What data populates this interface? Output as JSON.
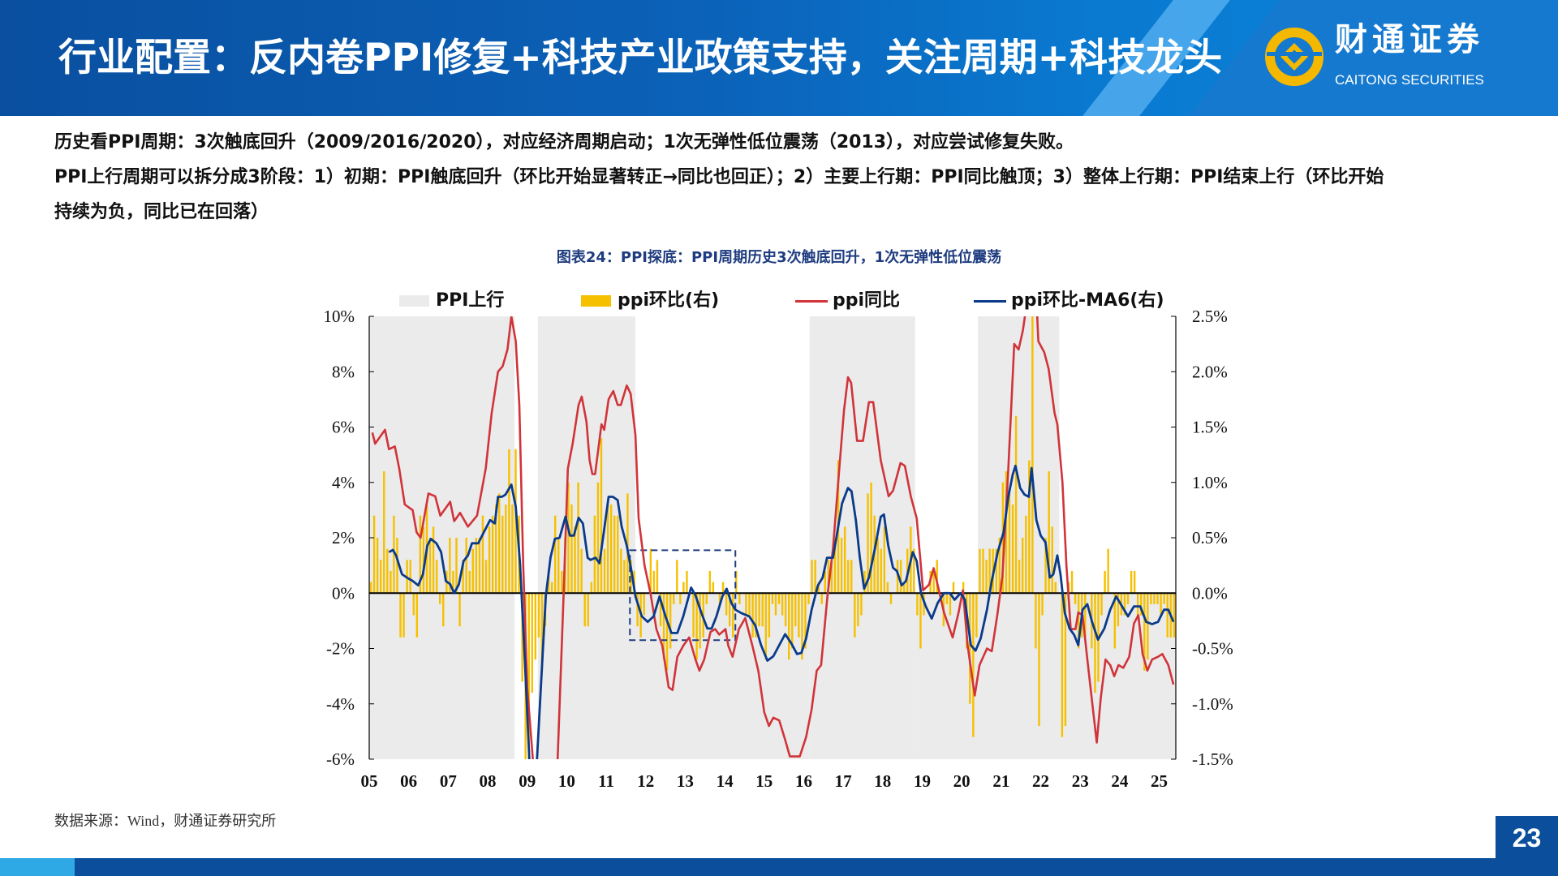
{
  "header": {
    "title": "行业配置：反内卷PPI修复+科技产业政策支持，关注周期+科技龙头",
    "logo_cn": "财通证券",
    "logo_en": "CAITONG SECURITIES"
  },
  "body": {
    "line1": "历史看PPI周期：3次触底回升（2009/2016/2020），对应经济周期启动；1次无弹性低位震荡（2013），对应尝试修复失败。",
    "line2a": "PPI上行周期可以拆分成3阶段：1）初期：PPI触底回升（环比开始显著转正→同比也回正）；2）主要上行期：PPI同比触顶；3）整体上行期：PPI结束上行（环比开始",
    "line2b": "持续为负，同比已在回落）"
  },
  "footer": {
    "source": "数据来源：Wind，财通证券研究所",
    "page_number": "23"
  },
  "colors": {
    "header_blue": "#0b62b8",
    "shade": "#ebebeb",
    "mom_bar": "#f5c000",
    "yoy_line": "#d0343a",
    "ma6_line": "#0a3a8a",
    "logo_gold": "#f5b800"
  },
  "chart_data": {
    "type": "combo",
    "title": "图表24：PPI探底：PPI周期历史3次触底回升，1次无弹性低位震荡",
    "legend": [
      "PPI上行",
      "ppi环比(右)",
      "ppi同比",
      "ppi环比-MA6(右)"
    ],
    "legend_placement": "top",
    "x_ticks": [
      "05",
      "06",
      "07",
      "08",
      "09",
      "10",
      "11",
      "12",
      "13",
      "14",
      "15",
      "16",
      "17",
      "18",
      "19",
      "20",
      "21",
      "22",
      "23",
      "24",
      "25"
    ],
    "x_range_year": [
      2005.0,
      2025.42
    ],
    "y_left": {
      "ticks": [
        "10%",
        "8%",
        "6%",
        "4%",
        "2%",
        "0%",
        "-2%",
        "-4%",
        "-6%"
      ],
      "range": [
        -6,
        10
      ]
    },
    "y_right": {
      "ticks": [
        "2.5%",
        "2.0%",
        "1.5%",
        "1.0%",
        "0.5%",
        "0.0%",
        "-0.5%",
        "-1.0%",
        "-1.5%"
      ],
      "range": [
        -1.5,
        2.5
      ]
    },
    "grid": false,
    "ppi_up_full_periods": [
      [
        2005.0,
        2008.68
      ],
      [
        2009.27,
        2011.74
      ],
      [
        2016.15,
        2018.82
      ],
      [
        2020.41,
        2022.47
      ]
    ],
    "ppi_down_shaded_periods": [
      [
        2011.74,
        2016.15
      ],
      [
        2018.82,
        2020.41
      ],
      [
        2022.47,
        2025.42
      ]
    ],
    "highlight_box": {
      "x": [
        2011.6,
        2014.27
      ],
      "y_left": [
        -1.7,
        1.55
      ]
    },
    "mom_start": "2005-01",
    "mom_right_axis": [
      0.1,
      0.7,
      0.5,
      0.3,
      1.1,
      0.4,
      0.2,
      0.7,
      0.5,
      -0.4,
      -0.4,
      0.3,
      0.3,
      -0.2,
      -0.4,
      0.7,
      0.6,
      0.8,
      0.5,
      0.6,
      0.3,
      -0.1,
      -0.3,
      0.2,
      0.5,
      0.2,
      0.5,
      -0.3,
      0.3,
      0.5,
      0.2,
      0.4,
      0.5,
      0.5,
      0.7,
      0.3,
      0.6,
      0.7,
      0.8,
      0.9,
      0.7,
      0.8,
      1.3,
      0.8,
      1.3,
      0.7,
      -0.8,
      -1.8,
      -1.9,
      -0.9,
      -0.6,
      -0.4,
      -0.7,
      -0.3,
      0.2,
      0.1,
      0.7,
      0.5,
      0.2,
      0.5,
      1.0,
      0.8,
      0.6,
      1.0,
      0.4,
      -0.3,
      -0.3,
      0.1,
      0.7,
      1.0,
      1.4,
      0.4,
      0.8,
      0.8,
      0.7,
      0.7,
      0.4,
      0.3,
      0.9,
      0.3,
      0.2,
      -0.3,
      -0.4,
      -0.2,
      0.0,
      0.4,
      0.2,
      0.3,
      -0.3,
      -0.6,
      -0.7,
      -0.5,
      -0.1,
      0.3,
      -0.1,
      0.1,
      0.2,
      0.0,
      -0.4,
      -0.6,
      -0.5,
      -0.4,
      -0.1,
      0.2,
      0.1,
      0.0,
      -0.1,
      0.1,
      -0.2,
      -0.3,
      -0.4,
      0.2,
      -0.1,
      0.0,
      -0.2,
      -0.2,
      -0.4,
      -0.4,
      -0.3,
      -0.3,
      -0.6,
      -0.4,
      -0.1,
      -0.2,
      -0.1,
      -0.2,
      -0.3,
      -0.6,
      -0.5,
      -0.3,
      -0.4,
      -0.6,
      -0.5,
      -0.1,
      0.3,
      0.3,
      0.1,
      -0.1,
      0.2,
      0.3,
      0.3,
      0.5,
      1.2,
      0.5,
      0.6,
      0.3,
      0.3,
      -0.4,
      -0.3,
      -0.2,
      0.2,
      0.9,
      1.0,
      0.7,
      0.5,
      0.4,
      0.6,
      0.1,
      -0.1,
      0.0,
      0.3,
      0.3,
      0.1,
      0.4,
      0.6,
      0.4,
      -0.2,
      -0.5,
      -0.2,
      0.0,
      0.2,
      0.2,
      0.3,
      0.0,
      -0.3,
      -0.1,
      -0.2,
      0.1,
      0.0,
      0.0,
      0.1,
      -0.5,
      -1.0,
      -1.3,
      -0.4,
      0.4,
      0.4,
      0.3,
      0.4,
      0.4,
      0.4,
      0.5,
      1.0,
      1.1,
      0.9,
      0.8,
      1.6,
      0.3,
      0.5,
      0.7,
      1.2,
      2.5,
      -0.5,
      -1.2,
      -0.2,
      0.5,
      1.1,
      0.6,
      0.1,
      0.0,
      -1.3,
      -1.2,
      0.1,
      0.2,
      -0.1,
      -0.5,
      -0.4,
      -0.4,
      0.0,
      -0.5,
      -0.9,
      -0.8,
      -0.2,
      0.2,
      0.4,
      0.0,
      -0.5,
      -0.3,
      -0.2,
      -0.2,
      -0.1,
      0.2,
      0.2,
      -0.2,
      -0.2,
      -0.7,
      -0.6,
      -0.1,
      -0.1,
      -0.1,
      -0.2,
      -0.1,
      -0.4,
      -0.4,
      -0.4
    ],
    "yoy_left_axis": [
      [
        2005.08,
        5.8
      ],
      [
        2005.15,
        5.4
      ],
      [
        2005.4,
        5.9
      ],
      [
        2005.5,
        5.2
      ],
      [
        2005.65,
        5.3
      ],
      [
        2005.76,
        4.5
      ],
      [
        2005.9,
        3.2
      ],
      [
        2006.1,
        3.0
      ],
      [
        2006.2,
        2.2
      ],
      [
        2006.3,
        2.0
      ],
      [
        2006.5,
        3.6
      ],
      [
        2006.67,
        3.5
      ],
      [
        2006.8,
        2.8
      ],
      [
        2007.05,
        3.3
      ],
      [
        2007.15,
        2.6
      ],
      [
        2007.3,
        2.9
      ],
      [
        2007.5,
        2.4
      ],
      [
        2007.73,
        2.8
      ],
      [
        2007.95,
        4.5
      ],
      [
        2008.1,
        6.5
      ],
      [
        2008.26,
        8.0
      ],
      [
        2008.38,
        8.2
      ],
      [
        2008.5,
        8.8
      ],
      [
        2008.6,
        10.0
      ],
      [
        2008.71,
        9.1
      ],
      [
        2008.8,
        6.8
      ],
      [
        2008.9,
        1.0
      ],
      [
        2009.0,
        -3.4
      ],
      [
        2009.17,
        -6.5
      ],
      [
        2009.45,
        -7.8
      ],
      [
        2009.77,
        -6.0
      ],
      [
        2009.92,
        -0.1
      ],
      [
        2010.03,
        4.5
      ],
      [
        2010.15,
        5.4
      ],
      [
        2010.3,
        6.8
      ],
      [
        2010.38,
        7.1
      ],
      [
        2010.5,
        6.2
      ],
      [
        2010.58,
        4.8
      ],
      [
        2010.65,
        4.3
      ],
      [
        2010.72,
        4.3
      ],
      [
        2010.88,
        6.1
      ],
      [
        2010.95,
        5.9
      ],
      [
        2011.06,
        7.0
      ],
      [
        2011.18,
        7.3
      ],
      [
        2011.29,
        6.8
      ],
      [
        2011.37,
        6.8
      ],
      [
        2011.52,
        7.5
      ],
      [
        2011.62,
        7.2
      ],
      [
        2011.74,
        5.7
      ],
      [
        2011.82,
        2.7
      ],
      [
        2011.97,
        1.0
      ],
      [
        2012.12,
        0.0
      ],
      [
        2012.27,
        -1.3
      ],
      [
        2012.42,
        -1.9
      ],
      [
        2012.58,
        -3.4
      ],
      [
        2012.68,
        -3.5
      ],
      [
        2012.8,
        -2.3
      ],
      [
        2012.95,
        -1.9
      ],
      [
        2013.1,
        -1.6
      ],
      [
        2013.26,
        -2.4
      ],
      [
        2013.36,
        -2.8
      ],
      [
        2013.48,
        -2.4
      ],
      [
        2013.64,
        -1.4
      ],
      [
        2013.76,
        -1.3
      ],
      [
        2013.86,
        -1.5
      ],
      [
        2014.02,
        -1.3
      ],
      [
        2014.09,
        -1.9
      ],
      [
        2014.2,
        -2.3
      ],
      [
        2014.36,
        -1.3
      ],
      [
        2014.52,
        -0.9
      ],
      [
        2014.7,
        -1.9
      ],
      [
        2014.85,
        -2.8
      ],
      [
        2015.0,
        -4.3
      ],
      [
        2015.12,
        -4.8
      ],
      [
        2015.23,
        -4.5
      ],
      [
        2015.38,
        -4.6
      ],
      [
        2015.53,
        -5.3
      ],
      [
        2015.65,
        -5.9
      ],
      [
        2015.9,
        -5.9
      ],
      [
        2016.06,
        -5.2
      ],
      [
        2016.2,
        -4.2
      ],
      [
        2016.33,
        -2.8
      ],
      [
        2016.44,
        -2.6
      ],
      [
        2016.6,
        -0.1
      ],
      [
        2016.74,
        1.6
      ],
      [
        2016.9,
        4.5
      ],
      [
        2017.02,
        6.6
      ],
      [
        2017.12,
        7.8
      ],
      [
        2017.2,
        7.6
      ],
      [
        2017.35,
        5.5
      ],
      [
        2017.5,
        5.5
      ],
      [
        2017.65,
        6.9
      ],
      [
        2017.76,
        6.9
      ],
      [
        2017.95,
        4.8
      ],
      [
        2018.15,
        3.5
      ],
      [
        2018.26,
        3.7
      ],
      [
        2018.45,
        4.7
      ],
      [
        2018.56,
        4.6
      ],
      [
        2018.71,
        3.5
      ],
      [
        2018.86,
        2.7
      ],
      [
        2019.02,
        0.1
      ],
      [
        2019.17,
        0.3
      ],
      [
        2019.29,
        0.9
      ],
      [
        2019.39,
        0.3
      ],
      [
        2019.55,
        -0.7
      ],
      [
        2019.77,
        -1.6
      ],
      [
        2019.92,
        -0.7
      ],
      [
        2020.03,
        0.1
      ],
      [
        2020.15,
        -1.9
      ],
      [
        2020.33,
        -3.7
      ],
      [
        2020.45,
        -2.6
      ],
      [
        2020.64,
        -2.0
      ],
      [
        2020.76,
        -2.1
      ],
      [
        2020.9,
        -0.8
      ],
      [
        2021.03,
        0.6
      ],
      [
        2021.18,
        4.5
      ],
      [
        2021.33,
        9.0
      ],
      [
        2021.44,
        8.8
      ],
      [
        2021.55,
        9.5
      ],
      [
        2021.67,
        10.7
      ],
      [
        2021.8,
        13.5
      ],
      [
        2021.94,
        9.1
      ],
      [
        2022.09,
        8.7
      ],
      [
        2022.2,
        8.1
      ],
      [
        2022.35,
        6.5
      ],
      [
        2022.42,
        6.1
      ],
      [
        2022.55,
        4.0
      ],
      [
        2022.65,
        1.0
      ],
      [
        2022.76,
        -1.3
      ],
      [
        2022.88,
        -1.3
      ],
      [
        2022.95,
        -0.7
      ],
      [
        2023.06,
        -0.8
      ],
      [
        2023.18,
        -2.4
      ],
      [
        2023.33,
        -4.3
      ],
      [
        2023.42,
        -5.4
      ],
      [
        2023.52,
        -3.8
      ],
      [
        2023.64,
        -2.4
      ],
      [
        2023.76,
        -2.6
      ],
      [
        2023.86,
        -3.0
      ],
      [
        2023.97,
        -2.6
      ],
      [
        2024.09,
        -2.7
      ],
      [
        2024.24,
        -2.3
      ],
      [
        2024.36,
        -1.1
      ],
      [
        2024.47,
        -0.8
      ],
      [
        2024.58,
        -2.2
      ],
      [
        2024.7,
        -2.8
      ],
      [
        2024.82,
        -2.4
      ],
      [
        2024.97,
        -2.3
      ],
      [
        2025.08,
        -2.2
      ],
      [
        2025.23,
        -2.6
      ],
      [
        2025.36,
        -3.3
      ]
    ],
    "ma6_right_axis": [
      [
        2005.5,
        0.37
      ],
      [
        2005.6,
        0.39
      ],
      [
        2005.68,
        0.34
      ],
      [
        2005.83,
        0.17
      ],
      [
        2006.0,
        0.13
      ],
      [
        2006.1,
        0.11
      ],
      [
        2006.24,
        0.07
      ],
      [
        2006.36,
        0.17
      ],
      [
        2006.47,
        0.43
      ],
      [
        2006.56,
        0.49
      ],
      [
        2006.7,
        0.45
      ],
      [
        2006.82,
        0.37
      ],
      [
        2006.94,
        0.11
      ],
      [
        2007.05,
        0.08
      ],
      [
        2007.15,
        0.0
      ],
      [
        2007.27,
        0.08
      ],
      [
        2007.39,
        0.29
      ],
      [
        2007.5,
        0.34
      ],
      [
        2007.6,
        0.45
      ],
      [
        2007.76,
        0.45
      ],
      [
        2007.9,
        0.55
      ],
      [
        2008.06,
        0.66
      ],
      [
        2008.18,
        0.63
      ],
      [
        2008.26,
        0.87
      ],
      [
        2008.36,
        0.87
      ],
      [
        2008.45,
        0.89
      ],
      [
        2008.6,
        0.98
      ],
      [
        2008.71,
        0.78
      ],
      [
        2008.82,
        0.26
      ],
      [
        2008.94,
        -0.61
      ],
      [
        2009.06,
        -1.55
      ],
      [
        2009.15,
        -1.7
      ],
      [
        2009.24,
        -1.55
      ],
      [
        2009.36,
        -0.76
      ],
      [
        2009.47,
        -0.03
      ],
      [
        2009.59,
        0.32
      ],
      [
        2009.7,
        0.49
      ],
      [
        2009.82,
        0.5
      ],
      [
        2009.97,
        0.69
      ],
      [
        2010.08,
        0.52
      ],
      [
        2010.18,
        0.52
      ],
      [
        2010.3,
        0.68
      ],
      [
        2010.41,
        0.63
      ],
      [
        2010.53,
        0.32
      ],
      [
        2010.6,
        0.3
      ],
      [
        2010.73,
        0.32
      ],
      [
        2010.83,
        0.27
      ],
      [
        2010.94,
        0.55
      ],
      [
        2011.06,
        0.87
      ],
      [
        2011.17,
        0.87
      ],
      [
        2011.29,
        0.84
      ],
      [
        2011.39,
        0.6
      ],
      [
        2011.52,
        0.43
      ],
      [
        2011.64,
        0.2
      ],
      [
        2011.74,
        -0.03
      ],
      [
        2011.9,
        -0.21
      ],
      [
        2012.05,
        -0.26
      ],
      [
        2012.2,
        -0.21
      ],
      [
        2012.35,
        -0.03
      ],
      [
        2012.5,
        -0.21
      ],
      [
        2012.65,
        -0.36
      ],
      [
        2012.8,
        -0.36
      ],
      [
        2012.95,
        -0.21
      ],
      [
        2013.15,
        0.05
      ],
      [
        2013.26,
        -0.02
      ],
      [
        2013.41,
        -0.18
      ],
      [
        2013.56,
        -0.32
      ],
      [
        2013.67,
        -0.32
      ],
      [
        2013.79,
        -0.21
      ],
      [
        2013.94,
        -0.03
      ],
      [
        2014.05,
        0.04
      ],
      [
        2014.17,
        -0.09
      ],
      [
        2014.27,
        -0.15
      ],
      [
        2014.42,
        -0.18
      ],
      [
        2014.62,
        -0.21
      ],
      [
        2014.77,
        -0.29
      ],
      [
        2014.92,
        -0.47
      ],
      [
        2015.08,
        -0.61
      ],
      [
        2015.23,
        -0.57
      ],
      [
        2015.38,
        -0.47
      ],
      [
        2015.53,
        -0.37
      ],
      [
        2015.68,
        -0.45
      ],
      [
        2015.83,
        -0.55
      ],
      [
        2015.94,
        -0.54
      ],
      [
        2016.06,
        -0.41
      ],
      [
        2016.2,
        -0.15
      ],
      [
        2016.36,
        0.07
      ],
      [
        2016.48,
        0.14
      ],
      [
        2016.59,
        0.32
      ],
      [
        2016.74,
        0.32
      ],
      [
        2016.85,
        0.55
      ],
      [
        2016.97,
        0.81
      ],
      [
        2017.12,
        0.95
      ],
      [
        2017.21,
        0.92
      ],
      [
        2017.32,
        0.66
      ],
      [
        2017.42,
        0.32
      ],
      [
        2017.53,
        0.04
      ],
      [
        2017.65,
        0.14
      ],
      [
        2017.8,
        0.4
      ],
      [
        2017.95,
        0.69
      ],
      [
        2018.03,
        0.71
      ],
      [
        2018.14,
        0.43
      ],
      [
        2018.26,
        0.23
      ],
      [
        2018.36,
        0.2
      ],
      [
        2018.48,
        0.07
      ],
      [
        2018.59,
        0.11
      ],
      [
        2018.76,
        0.37
      ],
      [
        2018.86,
        0.29
      ],
      [
        2018.97,
        0.0
      ],
      [
        2019.09,
        -0.12
      ],
      [
        2019.24,
        -0.23
      ],
      [
        2019.39,
        -0.09
      ],
      [
        2019.55,
        0.0
      ],
      [
        2019.7,
        0.0
      ],
      [
        2019.82,
        -0.06
      ],
      [
        2019.97,
        0.0
      ],
      [
        2020.08,
        -0.06
      ],
      [
        2020.23,
        -0.47
      ],
      [
        2020.35,
        -0.52
      ],
      [
        2020.48,
        -0.41
      ],
      [
        2020.64,
        -0.15
      ],
      [
        2020.76,
        0.11
      ],
      [
        2020.91,
        0.37
      ],
      [
        2021.06,
        0.55
      ],
      [
        2021.18,
        0.87
      ],
      [
        2021.29,
        1.07
      ],
      [
        2021.36,
        1.15
      ],
      [
        2021.48,
        0.95
      ],
      [
        2021.59,
        0.89
      ],
      [
        2021.7,
        0.87
      ],
      [
        2021.77,
        1.13
      ],
      [
        2021.89,
        0.66
      ],
      [
        2022.0,
        0.52
      ],
      [
        2022.12,
        0.46
      ],
      [
        2022.23,
        0.14
      ],
      [
        2022.32,
        0.17
      ],
      [
        2022.42,
        0.34
      ],
      [
        2022.5,
        0.17
      ],
      [
        2022.61,
        -0.18
      ],
      [
        2022.73,
        -0.32
      ],
      [
        2022.85,
        -0.38
      ],
      [
        2022.95,
        -0.47
      ],
      [
        2023.06,
        -0.15
      ],
      [
        2023.18,
        -0.1
      ],
      [
        2023.3,
        -0.26
      ],
      [
        2023.45,
        -0.42
      ],
      [
        2023.61,
        -0.32
      ],
      [
        2023.76,
        -0.15
      ],
      [
        2023.91,
        -0.03
      ],
      [
        2024.06,
        -0.12
      ],
      [
        2024.21,
        -0.21
      ],
      [
        2024.36,
        -0.12
      ],
      [
        2024.52,
        -0.12
      ],
      [
        2024.67,
        -0.26
      ],
      [
        2024.82,
        -0.28
      ],
      [
        2024.97,
        -0.26
      ],
      [
        2025.12,
        -0.15
      ],
      [
        2025.23,
        -0.15
      ],
      [
        2025.36,
        -0.26
      ]
    ]
  }
}
